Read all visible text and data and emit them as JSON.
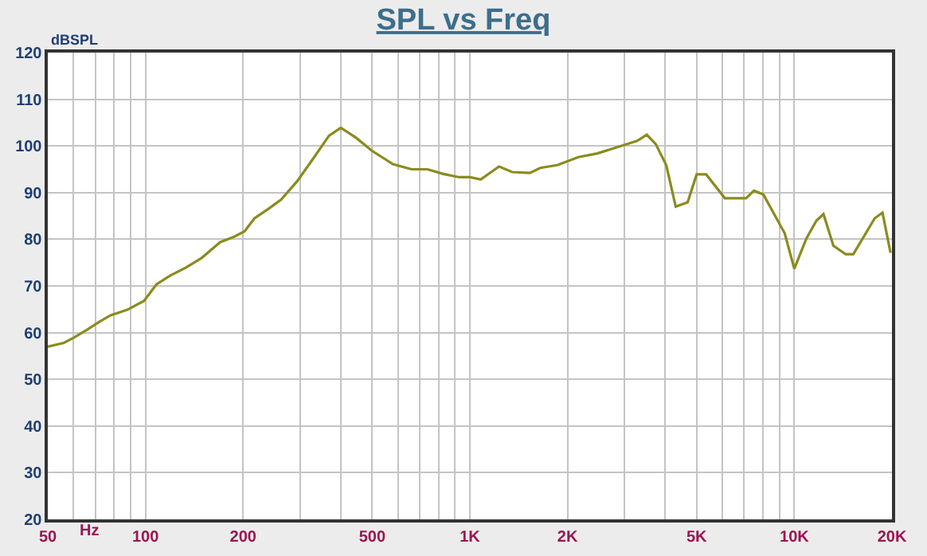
{
  "chart_data": {
    "type": "line",
    "title": "SPL vs Freq",
    "xlabel": "Hz",
    "ylabel": "dBSPL",
    "log": "x",
    "grid": true,
    "marker": "none",
    "line_style": "solid",
    "x": [
      50,
      56,
      60,
      66,
      72,
      78,
      88,
      99,
      108,
      119,
      133,
      149,
      170,
      187,
      202,
      217,
      239,
      262,
      294,
      329,
      368,
      400,
      445,
      498,
      579,
      661,
      740,
      828,
      927,
      1000,
      1080,
      1230,
      1350,
      1530,
      1650,
      1860,
      2160,
      2470,
      2990,
      3280,
      3510,
      3740,
      4030,
      4310,
      4690,
      5000,
      5350,
      6110,
      7100,
      7510,
      8030,
      9340,
      10000,
      10900,
      11700,
      12300,
      13200,
      14400,
      15200,
      17700,
      18700,
      19800
    ],
    "series": [
      {
        "color": "#8b8b1e",
        "values": [
          57,
          57.8,
          58.9,
          60.6,
          62.3,
          63.7,
          64.9,
          66.8,
          70.3,
          72.2,
          73.9,
          76,
          79.4,
          80.5,
          81.7,
          84.5,
          86.5,
          88.5,
          92.5,
          97.3,
          102.2,
          103.9,
          101.8,
          99,
          96.1,
          95,
          95,
          94,
          93.3,
          93.3,
          92.8,
          95.6,
          94.4,
          94.2,
          95.3,
          95.9,
          97.6,
          98.4,
          100.2,
          101.1,
          102.4,
          100.4,
          95.9,
          87,
          87.9,
          93.9,
          93.9,
          88.8,
          88.8,
          90.4,
          89.6,
          81.3,
          73.7,
          80.2,
          84,
          85.4,
          78.6,
          76.8,
          76.8,
          84.5,
          85.7,
          77.1
        ]
      }
    ],
    "xlim": [
      50,
      20000
    ],
    "ylim": [
      20,
      120
    ],
    "xticks": [
      50,
      {
        "value": 60,
        "label": null
      },
      {
        "value": 70,
        "label": null
      },
      {
        "value": 80,
        "label": null
      },
      {
        "value": 90,
        "label": null
      },
      100,
      200,
      {
        "value": 300,
        "label": null
      },
      {
        "value": 400,
        "label": null
      },
      500,
      {
        "value": 600,
        "label": null
      },
      {
        "value": 700,
        "label": null
      },
      {
        "value": 800,
        "label": null
      },
      {
        "value": 900,
        "label": null
      },
      {
        "value": 1000,
        "label": "1K"
      },
      {
        "value": 2000,
        "label": "2K"
      },
      {
        "value": 3000,
        "label": null
      },
      {
        "value": 4000,
        "label": null
      },
      {
        "value": 5000,
        "label": "5K"
      },
      {
        "value": 6000,
        "label": null
      },
      {
        "value": 7000,
        "label": null
      },
      {
        "value": 8000,
        "label": null
      },
      {
        "value": 9000,
        "label": null
      },
      {
        "value": 10000,
        "label": "10K"
      },
      {
        "value": 20000,
        "label": "20K"
      }
    ],
    "yticks": [
      20,
      30,
      40,
      50,
      60,
      70,
      80,
      90,
      100,
      110,
      120
    ]
  }
}
